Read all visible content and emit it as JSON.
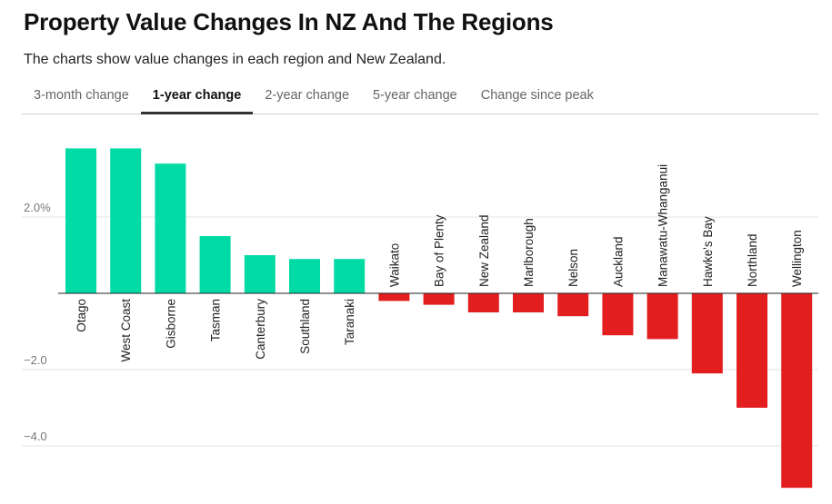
{
  "header": {
    "title": "Property Value Changes In NZ And The Regions",
    "subtitle": "The charts show value changes in each region and New Zealand."
  },
  "tabs": [
    {
      "label": "3-month change",
      "active": false
    },
    {
      "label": "1-year change",
      "active": true
    },
    {
      "label": "2-year change",
      "active": false
    },
    {
      "label": "5-year change",
      "active": false
    },
    {
      "label": "Change since peak",
      "active": false
    }
  ],
  "colors": {
    "positive": "#00dba6",
    "negative": "#e21e1e",
    "grid": "#e4e4e4"
  },
  "chart_data": {
    "type": "bar",
    "categories": [
      "Otago",
      "West Coast",
      "Gisborne",
      "Tasman",
      "Canterbury",
      "Southland",
      "Taranaki",
      "Waikato",
      "Bay of Plenty",
      "New Zealand",
      "Marlborough",
      "Nelson",
      "Auckland",
      "Manawatu-Whanganui",
      "Hawke's Bay",
      "Northland",
      "Wellington"
    ],
    "values": [
      3.8,
      3.8,
      3.4,
      1.5,
      1.0,
      0.9,
      0.9,
      -0.2,
      -0.3,
      -0.5,
      -0.5,
      -0.6,
      -1.1,
      -1.2,
      -2.1,
      -3.0,
      -5.1
    ],
    "ylim": [
      -5.1,
      3.8
    ],
    "yticks": [
      {
        "value": 2.0,
        "label": "2.0%"
      },
      {
        "value": -2.0,
        "label": "−2.0"
      },
      {
        "value": -4.0,
        "label": "−4.0"
      }
    ],
    "xlabel": "",
    "ylabel": "",
    "grid": true,
    "legend": "none"
  }
}
